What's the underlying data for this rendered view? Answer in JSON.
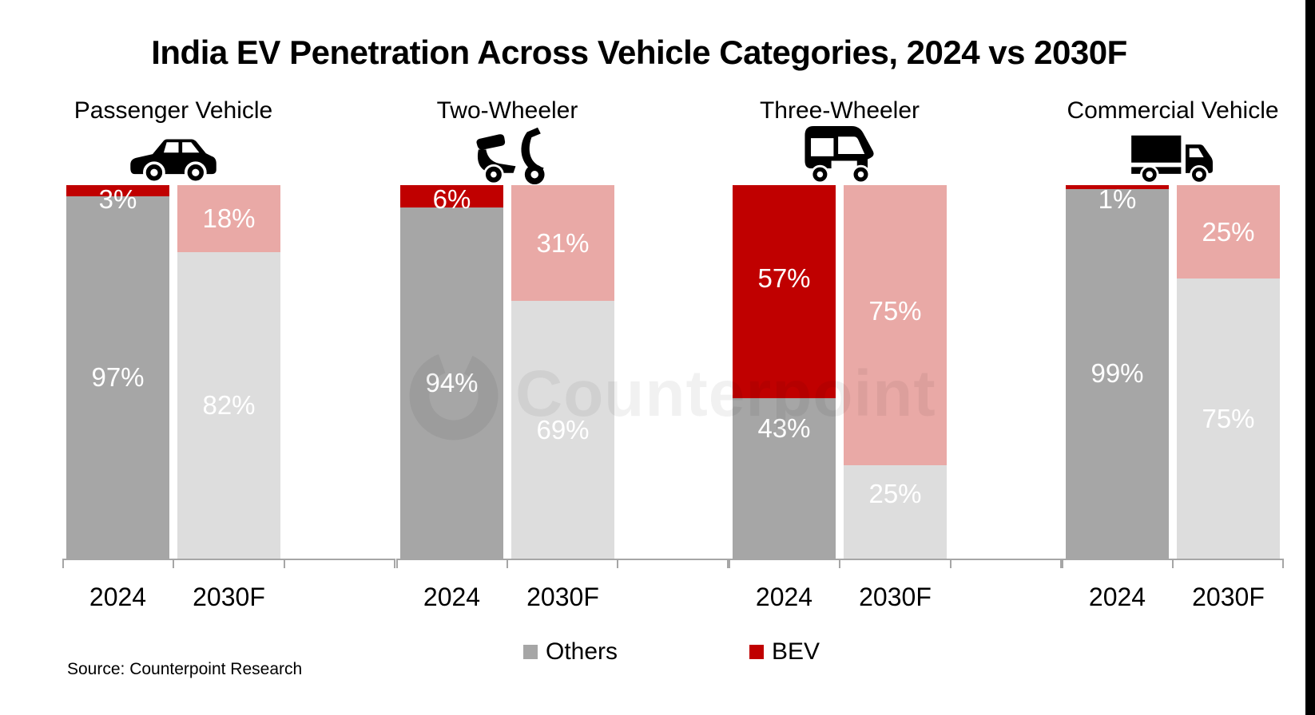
{
  "title": "India EV Penetration Across Vehicle Categories, 2024 vs 2030F",
  "source": "Source: Counterpoint Research",
  "watermark": "Counterpoint",
  "colors": {
    "bev_2024": "#C00000",
    "others_2024": "#A6A6A6",
    "bev_2030": "#E9A9A6",
    "others_2030": "#DDDDDD",
    "axis": "#A6A6A6",
    "segment_label_text": "#FFFFFF",
    "icon": "#000000",
    "title_text": "#000000"
  },
  "legend": {
    "items": [
      {
        "label": "Others",
        "color": "#A6A6A6"
      },
      {
        "label": "BEV",
        "color": "#C00000"
      }
    ]
  },
  "chart_data": {
    "type": "bar",
    "subtype": "100%-stacked-column",
    "title": "India EV Penetration Across Vehicle Categories, 2024 vs 2030F",
    "unit": "%",
    "ylim": [
      0,
      100
    ],
    "grid": false,
    "legend_position": "bottom",
    "categories": [
      "2024",
      "2030F"
    ],
    "stack_order_top_to_bottom": [
      "BEV",
      "Others"
    ],
    "panels": [
      {
        "label": "Passenger Vehicle",
        "icon": "car",
        "bars": [
          {
            "category": "2024",
            "BEV": 3,
            "Others": 97
          },
          {
            "category": "2030F",
            "BEV": 18,
            "Others": 82
          }
        ]
      },
      {
        "label": "Two-Wheeler",
        "icon": "scooter",
        "bars": [
          {
            "category": "2024",
            "BEV": 6,
            "Others": 94
          },
          {
            "category": "2030F",
            "BEV": 31,
            "Others": 69
          }
        ]
      },
      {
        "label": "Three-Wheeler",
        "icon": "auto-rickshaw",
        "bars": [
          {
            "category": "2024",
            "BEV": 57,
            "Others": 43
          },
          {
            "category": "2030F",
            "BEV": 75,
            "Others": 25
          }
        ]
      },
      {
        "label": "Commercial Vehicle",
        "icon": "truck",
        "bars": [
          {
            "category": "2024",
            "BEV": 1,
            "Others": 99
          },
          {
            "category": "2030F",
            "BEV": 25,
            "Others": 75
          }
        ]
      }
    ]
  }
}
